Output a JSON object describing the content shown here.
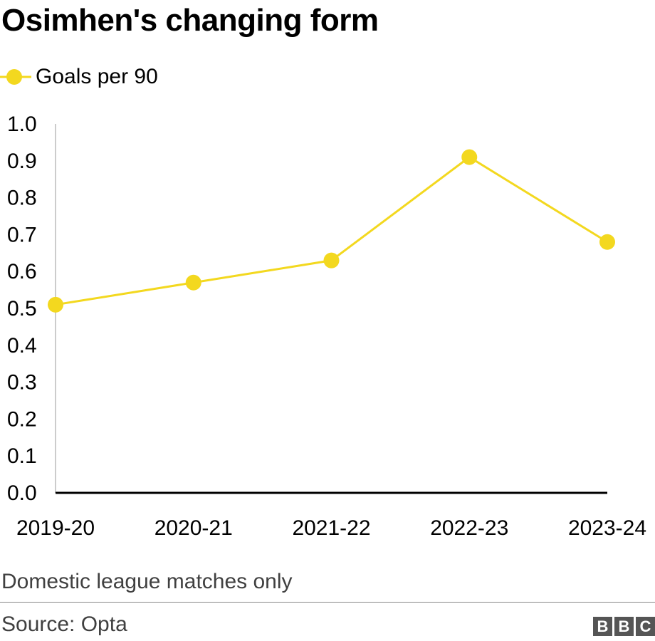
{
  "chart_data": {
    "type": "line",
    "title": "Osimhen's changing form",
    "categories": [
      "2019-20",
      "2020-21",
      "2021-22",
      "2022-23",
      "2023-24"
    ],
    "series": [
      {
        "name": "Goals per 90",
        "values": [
          0.51,
          0.57,
          0.63,
          0.91,
          0.68
        ],
        "color": "#f3d81f"
      }
    ],
    "ylim": [
      0,
      1.0
    ],
    "yticks": [
      "0.0",
      "0.1",
      "0.2",
      "0.3",
      "0.4",
      "0.5",
      "0.6",
      "0.7",
      "0.8",
      "0.9",
      "1.0"
    ],
    "grid": false,
    "legend": "top-left",
    "note": "Domestic league matches only",
    "source": "Source: Opta"
  },
  "branding": {
    "logo_letters": [
      "B",
      "B",
      "C"
    ]
  }
}
